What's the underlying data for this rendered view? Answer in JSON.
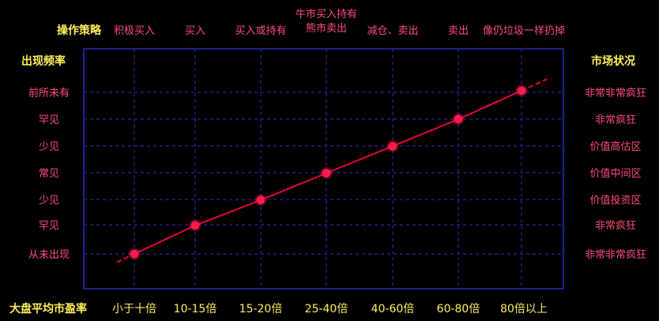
{
  "colors": {
    "background": "#000000",
    "grid": "#1d1f8a",
    "frame": "#1e2290",
    "yellow_label": "#ffef5a",
    "red_label": "#ff4d7a",
    "line": "#e8003c",
    "marker": "#ff1a4a"
  },
  "labels": {
    "strategy_title": "操作策略",
    "frequency_title": "出现频率",
    "market_title": "市场状况",
    "pe_title": "大盘平均市盈率"
  },
  "chart_data": {
    "type": "line",
    "x_axis_name": "大盘平均市盈率",
    "categories": [
      "小于十倍",
      "10-15倍",
      "15-20倍",
      "25-40倍",
      "40-60倍",
      "60-80倍",
      "80倍以上"
    ],
    "strategy": [
      "积极买入",
      "买入",
      "买入或持有",
      "牛市买入持有\n熊市卖出",
      "减仓、卖出",
      "卖出",
      "像仍垃圾一样扔掉"
    ],
    "left_axis_name": "出现频率",
    "left_ticks": [
      "前所未有",
      "罕见",
      "少见",
      "常见",
      "少见",
      "罕见",
      "从未出现"
    ],
    "right_axis_name": "市场状况",
    "right_ticks": [
      "非常非常疯狂",
      "非常疯狂",
      "价值高估区",
      "价值中间区",
      "价值投资区",
      "非常疯狂",
      "非常非常疯狂"
    ],
    "points": [
      {
        "category": "小于十倍",
        "level": 0.0
      },
      {
        "category": "10-15倍",
        "level": 1.06
      },
      {
        "category": "15-20倍",
        "level": 2.0
      },
      {
        "category": "25-40倍",
        "level": 3.0
      },
      {
        "category": "40-60倍",
        "level": 4.0
      },
      {
        "category": "60-80倍",
        "level": 5.0
      },
      {
        "category": "80倍以上",
        "level": 6.06
      }
    ],
    "ylim": [
      0,
      6
    ],
    "grid": true,
    "trend_extends_dashed": true
  }
}
